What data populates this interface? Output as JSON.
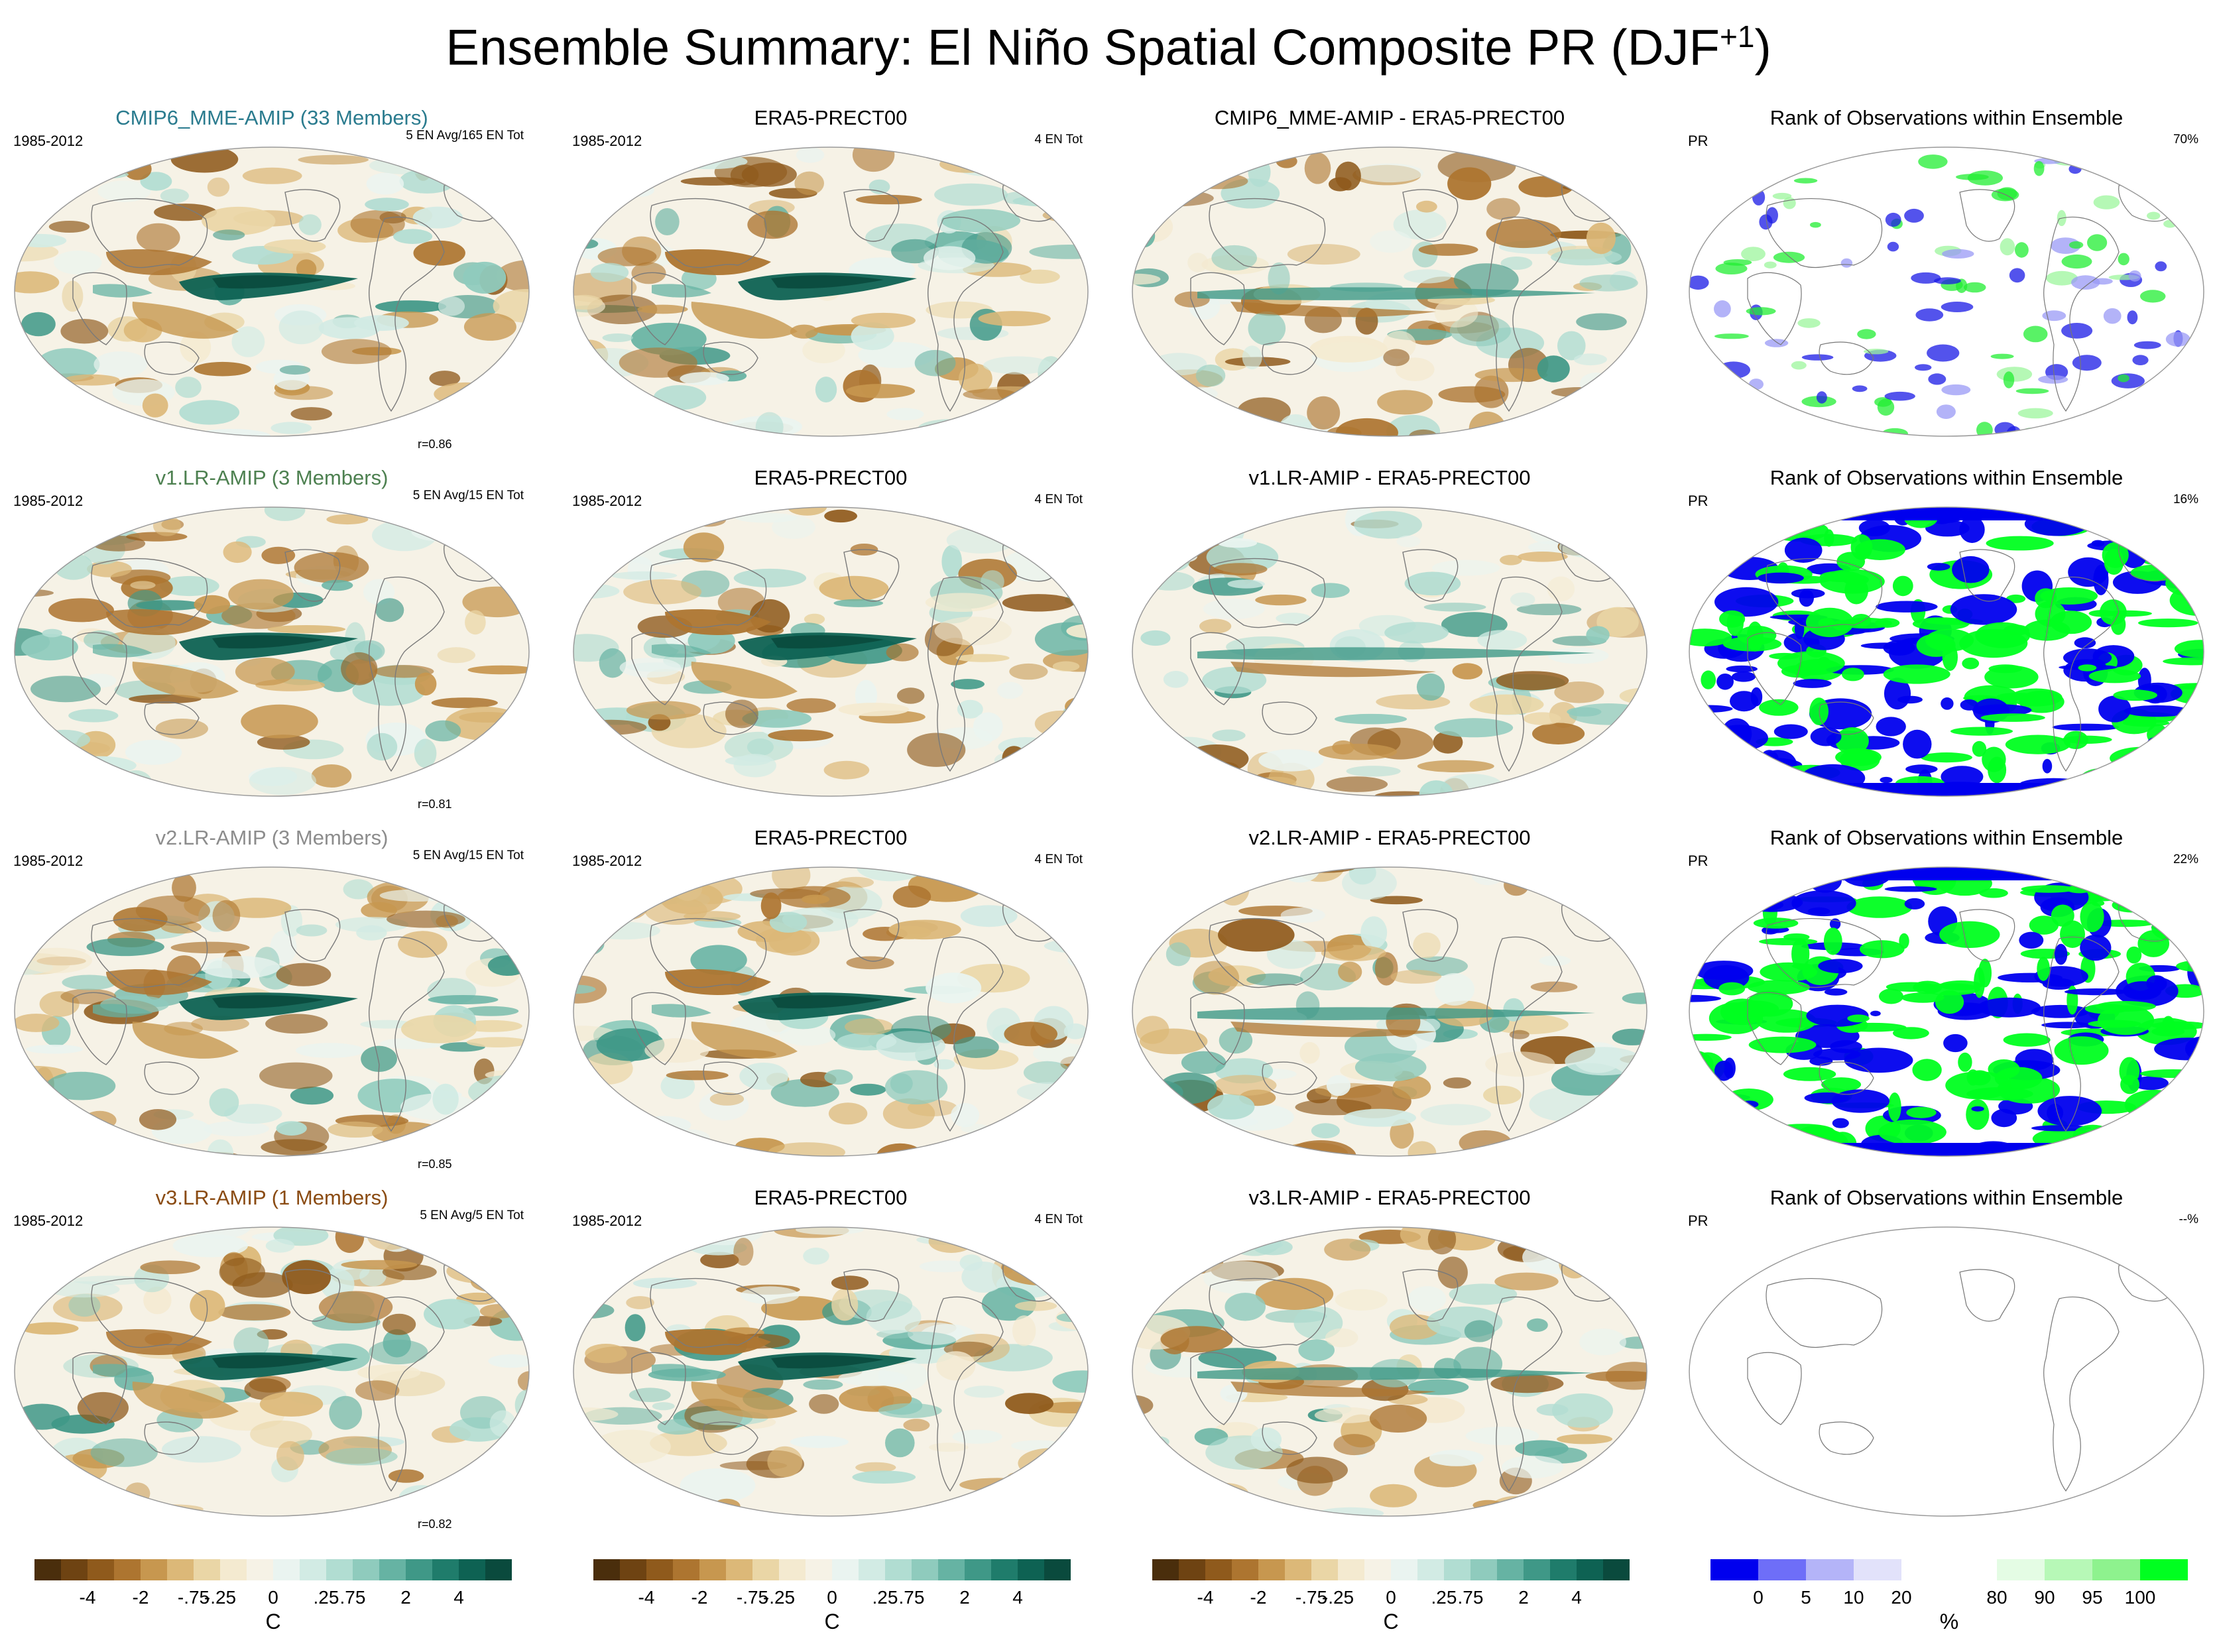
{
  "figure": {
    "title_main": "Ensemble Summary: El Niño Spatial Composite PR (DJF",
    "title_sup": "+1",
    "title_end": ")"
  },
  "colors": {
    "cmip6": "#2a7b8e",
    "v1": "#4d8050",
    "v2": "#8c8c8c",
    "v3": "#8a4b12",
    "land_line": "#7a7a7a",
    "map_edge": "#9a9a9a",
    "rank_land_line": "#777777"
  },
  "rows": [
    {
      "model_title": "CMIP6_MME-AMIP (33 Members)",
      "model_color_key": "cmip6",
      "period": "1985-2012",
      "model_count": "5 EN Avg/165 EN Tot",
      "corr": "r=0.86",
      "obs_title": "ERA5-PRECT00",
      "obs_period": "1985-2012",
      "obs_count": "4 EN Tot",
      "diff_title": "CMIP6_MME-AMIP - ERA5-PRECT00",
      "rank_title": "Rank of Observations within Ensemble",
      "rank_var": "PR",
      "rank_pct": "70%",
      "rank_density": 0.45
    },
    {
      "model_title": "v1.LR-AMIP (3 Members)",
      "model_color_key": "v1",
      "period": "1985-2012",
      "model_count": "5 EN Avg/15 EN Tot",
      "corr": "r=0.81",
      "obs_title": "ERA5-PRECT00",
      "obs_period": "1985-2012",
      "obs_count": "4 EN Tot",
      "diff_title": "v1.LR-AMIP - ERA5-PRECT00",
      "rank_title": "Rank of Observations within Ensemble",
      "rank_var": "PR",
      "rank_pct": "16%",
      "rank_density": 0.95
    },
    {
      "model_title": "v2.LR-AMIP (3 Members)",
      "model_color_key": "v2",
      "period": "1985-2012",
      "model_count": "5 EN Avg/15 EN Tot",
      "corr": "r=0.85",
      "obs_title": "ERA5-PRECT00",
      "obs_period": "1985-2012",
      "obs_count": "4 EN Tot",
      "diff_title": "v2.LR-AMIP - ERA5-PRECT00",
      "rank_title": "Rank of Observations within Ensemble",
      "rank_var": "PR",
      "rank_pct": "22%",
      "rank_density": 0.93
    },
    {
      "model_title": "v3.LR-AMIP (1 Members)",
      "model_color_key": "v3",
      "period": "1985-2012",
      "model_count": "5 EN Avg/5 EN Tot",
      "corr": "r=0.82",
      "obs_title": "ERA5-PRECT00",
      "obs_period": "1985-2012",
      "obs_count": "4 EN Tot",
      "diff_title": "v3.LR-AMIP - ERA5-PRECT00",
      "rank_title": "Rank of Observations within Ensemble",
      "rank_var": "PR",
      "rank_pct": "--%",
      "rank_density": 0
    }
  ],
  "colorbar_diverging": {
    "unit": "C",
    "colors": [
      "#4a2e0c",
      "#6e4312",
      "#8f5a1c",
      "#ad7530",
      "#c7974f",
      "#dcb878",
      "#ead6a6",
      "#f4ead0",
      "#f6f2e6",
      "#eaf4f0",
      "#d2ebe4",
      "#b1ddd2",
      "#8fcbbd",
      "#66b3a3",
      "#3f9887",
      "#1f7c6b",
      "#0e6253",
      "#0a4a3d"
    ],
    "ticks": [
      "-4",
      "-2",
      "-.75",
      "-.25",
      "0",
      ".25",
      ".75",
      "2",
      "4"
    ],
    "tick_positions": [
      2,
      4,
      6,
      7,
      9,
      11,
      12,
      14,
      16
    ]
  },
  "colorbar_rank": {
    "unit": "%",
    "colors": [
      "#0000ee",
      "#6e6ef8",
      "#b4b4f8",
      "#e2e2fa",
      "#ffffff",
      "#ffffff",
      "#e4fce4",
      "#b7f8b7",
      "#8ef28e",
      "#00ff20"
    ],
    "ticks": [
      "0",
      "5",
      "10",
      "20",
      "80",
      "90",
      "95",
      "100"
    ],
    "tick_positions": [
      1,
      2,
      3,
      4,
      6,
      7,
      8,
      9
    ]
  },
  "chart_data": {
    "type": "heatmap",
    "title": "Ensemble Summary: El Niño Spatial Composite PR (DJF+1)",
    "xlabel": "",
    "ylabel": "",
    "panels": [
      {
        "row": 1,
        "kind": "model composite",
        "name": "CMIP6_MME-AMIP (33 Members)",
        "correlation": 0.86
      },
      {
        "row": 1,
        "kind": "observation composite",
        "name": "ERA5-PRECT00"
      },
      {
        "row": 1,
        "kind": "difference",
        "name": "CMIP6_MME-AMIP - ERA5-PRECT00"
      },
      {
        "row": 1,
        "kind": "rank",
        "name": "Rank of Observations within Ensemble",
        "percent_significant": 70
      },
      {
        "row": 2,
        "kind": "model composite",
        "name": "v1.LR-AMIP (3 Members)",
        "correlation": 0.81
      },
      {
        "row": 2,
        "kind": "observation composite",
        "name": "ERA5-PRECT00"
      },
      {
        "row": 2,
        "kind": "difference",
        "name": "v1.LR-AMIP - ERA5-PRECT00"
      },
      {
        "row": 2,
        "kind": "rank",
        "name": "Rank of Observations within Ensemble",
        "percent_significant": 16
      },
      {
        "row": 3,
        "kind": "model composite",
        "name": "v2.LR-AMIP (3 Members)",
        "correlation": 0.85
      },
      {
        "row": 3,
        "kind": "observation composite",
        "name": "ERA5-PRECT00"
      },
      {
        "row": 3,
        "kind": "difference",
        "name": "v2.LR-AMIP - ERA5-PRECT00"
      },
      {
        "row": 3,
        "kind": "rank",
        "name": "Rank of Observations within Ensemble",
        "percent_significant": 22
      },
      {
        "row": 4,
        "kind": "model composite",
        "name": "v3.LR-AMIP (1 Members)",
        "correlation": 0.82
      },
      {
        "row": 4,
        "kind": "observation composite",
        "name": "ERA5-PRECT00"
      },
      {
        "row": 4,
        "kind": "difference",
        "name": "v3.LR-AMIP - ERA5-PRECT00"
      },
      {
        "row": 4,
        "kind": "rank",
        "name": "Rank of Observations within Ensemble",
        "percent_significant": null
      }
    ],
    "colorbars": [
      {
        "unit": "C",
        "ticks": [
          -4,
          -2,
          -0.75,
          -0.25,
          0,
          0.25,
          0.75,
          2,
          4
        ]
      },
      {
        "unit": "%",
        "ticks": [
          0,
          5,
          10,
          20,
          80,
          90,
          95,
          100
        ]
      }
    ]
  }
}
